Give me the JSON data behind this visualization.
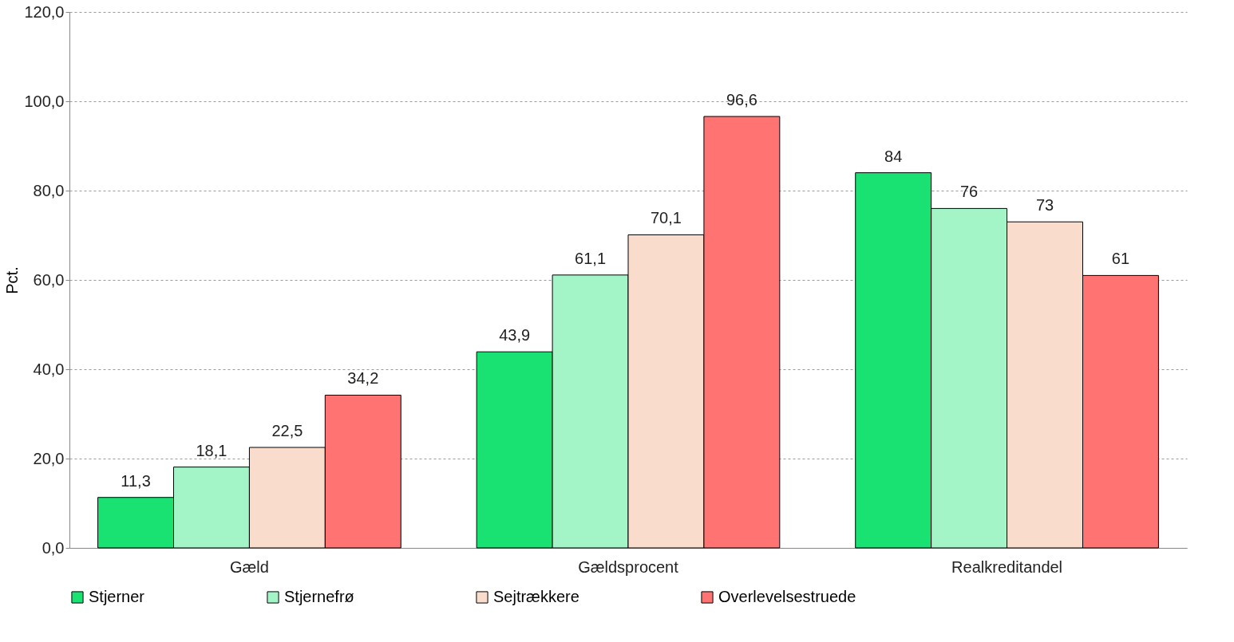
{
  "chart_data": {
    "type": "bar",
    "ylabel": "Pct.",
    "categories": [
      "Gæld",
      "Gældsprocent",
      "Realkreditandel"
    ],
    "series": [
      {
        "name": "Stjerner",
        "color": "#1ae272",
        "values": [
          11.3,
          43.9,
          84
        ],
        "value_labels": [
          "11,3",
          "43,9",
          "84"
        ]
      },
      {
        "name": "Stjernefrø",
        "color": "#a3f5c8",
        "values": [
          18.1,
          61.1,
          76
        ],
        "value_labels": [
          "18,1",
          "61,1",
          "76"
        ]
      },
      {
        "name": "Sejtrækkere",
        "color": "#fadccc",
        "values": [
          22.5,
          70.1,
          73
        ],
        "value_labels": [
          "22,5",
          "70,1",
          "73"
        ]
      },
      {
        "name": "Overlevelsestruede",
        "color": "#ff7373",
        "values": [
          34.2,
          96.6,
          61
        ],
        "value_labels": [
          "34,2",
          "96,6",
          "61"
        ]
      }
    ],
    "ylim": [
      0,
      120
    ],
    "yticks": [
      {
        "value": 0,
        "label": "0,0"
      },
      {
        "value": 20,
        "label": "20,0"
      },
      {
        "value": 40,
        "label": "40,0"
      },
      {
        "value": 60,
        "label": "60,0"
      },
      {
        "value": 80,
        "label": "80,0"
      },
      {
        "value": 100,
        "label": "100,0"
      },
      {
        "value": 120,
        "label": "120,0"
      }
    ],
    "grid": "y",
    "legend": "bottom"
  }
}
